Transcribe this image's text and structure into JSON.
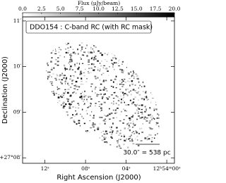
{
  "chart_data": {
    "type": "image",
    "title": "DDO154 : C-band RC (with RC mask)",
    "xlabel": "Right Ascension (J2000)",
    "ylabel": "Declination (J2000)",
    "annotation": "30.0″ = 538 pc",
    "xlim": [
      12.90394,
      12.89979
    ],
    "xticks": [
      {
        "value": 12.90333,
        "label": "12ˢ"
      },
      {
        "value": 12.90222,
        "label": "08ˢ"
      },
      {
        "value": 12.90111,
        "label": "04ˢ"
      },
      {
        "value": 12.9,
        "label": "12ʰ54ᵐ00ˢ"
      }
    ],
    "ylim": [
      27.13133,
      27.18483
    ],
    "yticks": [
      {
        "value": 27.18333,
        "label": "11′"
      },
      {
        "value": 27.16667,
        "label": "10′"
      },
      {
        "value": 27.15,
        "label": "09′"
      },
      {
        "value": 27.13333,
        "label": "+27°08′"
      }
    ],
    "colorbar": {
      "label": "Flux (μJy/beam)",
      "lim": [
        0,
        20
      ],
      "colors": [
        "#ffffff",
        "#000000"
      ],
      "ticks": [
        {
          "value": 0,
          "label": "0.0"
        },
        2.5,
        {
          "value": 5,
          "label": "5.0"
        },
        7.5,
        {
          "value": 10,
          "label": "10.0"
        },
        12.5,
        {
          "value": 15,
          "label": "15.0"
        },
        17.5,
        {
          "value": 20,
          "label": "20.0"
        }
      ]
    }
  }
}
